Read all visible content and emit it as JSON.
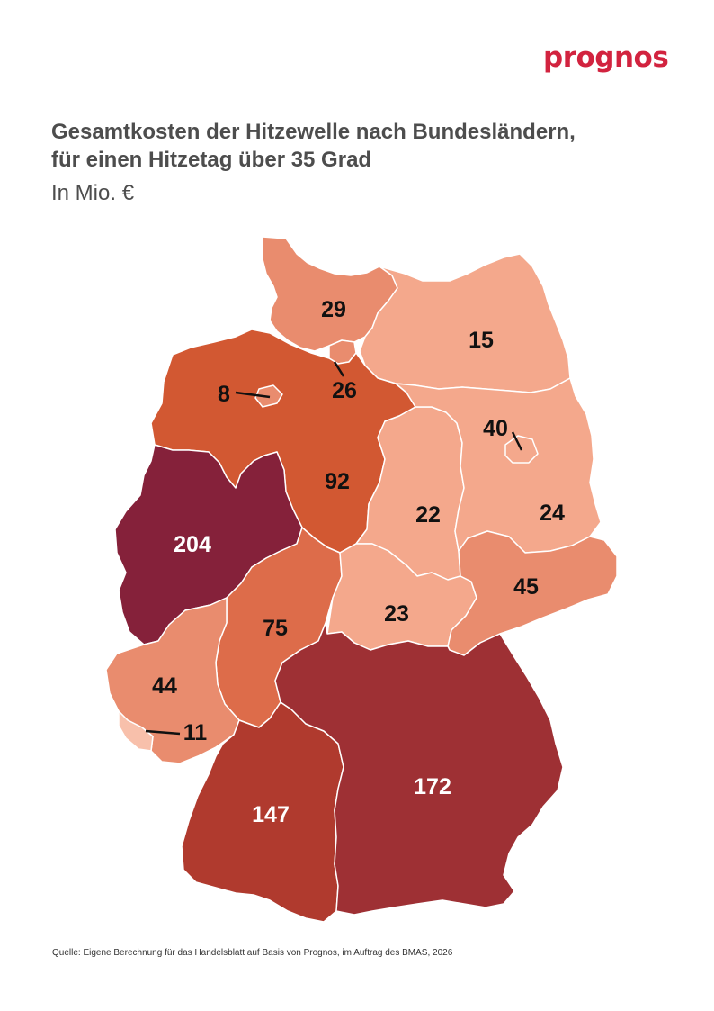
{
  "logo": "prognos",
  "title_line1": "Gesamtkosten der Hitzewelle nach Bundesländern,",
  "title_line2": "für einen Hitzetag über 35 Grad",
  "subtitle": "In Mio. €",
  "source": "Quelle: Eigene Berechnung für das Handelsblatt auf Basis von Prognos, im Auftrag des BMAS, 2026",
  "colors": {
    "brand": "#d2233f",
    "lightest": "#f8c0ab",
    "light": "#f4a88c",
    "medium": "#e98c6e",
    "orange": "#dd6c4a",
    "dark_orange": "#d25832",
    "red": "#b03a2e",
    "dark_red": "#9e3034",
    "maroon": "#85213a"
  },
  "regions": [
    {
      "id": "SH",
      "value": "29"
    },
    {
      "id": "MV",
      "value": "15"
    },
    {
      "id": "HB",
      "value": "8"
    },
    {
      "id": "HH",
      "value": "26"
    },
    {
      "id": "BE",
      "value": "40"
    },
    {
      "id": "NI",
      "value": "92"
    },
    {
      "id": "ST",
      "value": "22"
    },
    {
      "id": "BB",
      "value": "24"
    },
    {
      "id": "NW",
      "value": "204"
    },
    {
      "id": "SN",
      "value": "45"
    },
    {
      "id": "HE",
      "value": "75"
    },
    {
      "id": "TH",
      "value": "23"
    },
    {
      "id": "RP",
      "value": "44"
    },
    {
      "id": "SL",
      "value": "11"
    },
    {
      "id": "BY",
      "value": "172"
    },
    {
      "id": "BW",
      "value": "147"
    }
  ]
}
